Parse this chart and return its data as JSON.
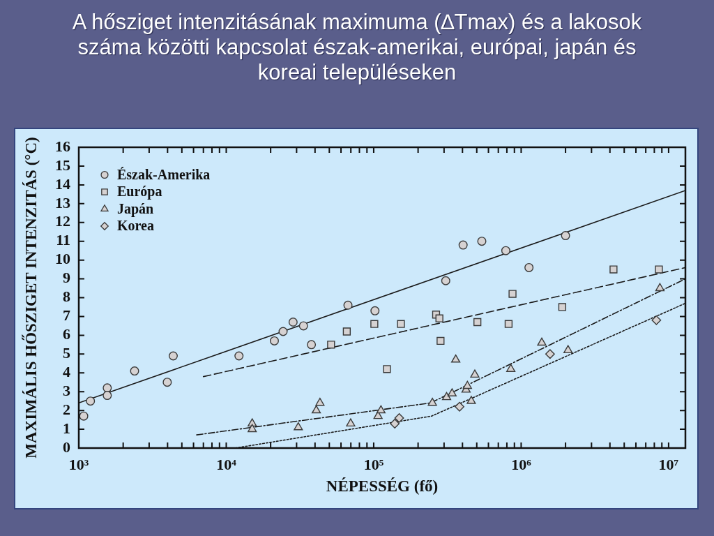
{
  "chart_data": {
    "type": "scatter",
    "title": "A hősziget intenzitásának maximuma (∆Tmax) és a lakosok száma közötti kapcsolat észak-amerikai, európai, japán és koreai településeken",
    "xlabel": "NÉPESSÉG (fő)",
    "ylabel": "MAXIMÁLIS HŐSZIGET INTENZITÁS (°C)",
    "log": "x",
    "legend": "top left",
    "xlim": [
      1000,
      13000000
    ],
    "xticks": [
      {
        "value": 1000,
        "label": "10³"
      },
      {
        "value": 2000,
        "label": null
      },
      {
        "value": 3000,
        "label": null
      },
      {
        "value": 4000,
        "label": null
      },
      {
        "value": 5000,
        "label": null
      },
      {
        "value": 6000,
        "label": null
      },
      {
        "value": 7000,
        "label": null
      },
      {
        "value": 8000,
        "label": null
      },
      {
        "value": 9000,
        "label": null
      },
      {
        "value": 10000,
        "label": "10⁴"
      },
      {
        "value": 20000,
        "label": null
      },
      {
        "value": 30000,
        "label": null
      },
      {
        "value": 40000,
        "label": null
      },
      {
        "value": 50000,
        "label": null
      },
      {
        "value": 60000,
        "label": null
      },
      {
        "value": 70000,
        "label": null
      },
      {
        "value": 80000,
        "label": null
      },
      {
        "value": 90000,
        "label": null
      },
      {
        "value": 100000,
        "label": "10⁵"
      },
      {
        "value": 200000,
        "label": null
      },
      {
        "value": 300000,
        "label": null
      },
      {
        "value": 400000,
        "label": null
      },
      {
        "value": 500000,
        "label": null
      },
      {
        "value": 600000,
        "label": null
      },
      {
        "value": 700000,
        "label": null
      },
      {
        "value": 800000,
        "label": null
      },
      {
        "value": 900000,
        "label": null
      },
      {
        "value": 1000000,
        "label": "10⁶"
      },
      {
        "value": 2000000,
        "label": null
      },
      {
        "value": 3000000,
        "label": null
      },
      {
        "value": 4000000,
        "label": null
      },
      {
        "value": 5000000,
        "label": null
      },
      {
        "value": 6000000,
        "label": null
      },
      {
        "value": 7000000,
        "label": null
      },
      {
        "value": 8000000,
        "label": null
      },
      {
        "value": 9000000,
        "label": null
      },
      {
        "value": 10000000,
        "label": "10⁷"
      }
    ],
    "ylim": [
      0,
      16
    ],
    "yticks": [
      0,
      1,
      2,
      3,
      4,
      5,
      6,
      7,
      8,
      9,
      10,
      11,
      12,
      13,
      14,
      15,
      16
    ],
    "series": [
      {
        "name": "Észak-Amerika",
        "color": "#d6d2d2",
        "marker": "circle",
        "x": [
          1080,
          1200,
          1560,
          1560,
          2390,
          3980,
          4370,
          12200,
          21200,
          24300,
          28400,
          33400,
          37800,
          66900,
          102000,
          308000,
          404000,
          541000,
          787000,
          1130000,
          2000000
        ],
        "values": [
          1.7,
          2.5,
          3.2,
          2.8,
          4.1,
          3.5,
          4.9,
          4.9,
          5.7,
          6.2,
          6.7,
          6.5,
          5.5,
          7.6,
          7.3,
          8.9,
          10.8,
          11.0,
          10.5,
          9.6,
          11.3
        ]
      },
      {
        "name": "Európa",
        "color": "#d6d2d2",
        "marker": "square",
        "x": [
          51400,
          65700,
          101000,
          153000,
          123000,
          265000,
          279000,
          284000,
          505000,
          822000,
          874000,
          1900000,
          4230000,
          8590000
        ],
        "values": [
          5.5,
          6.2,
          6.6,
          6.6,
          4.2,
          7.1,
          6.9,
          5.7,
          6.7,
          6.6,
          8.2,
          7.5,
          9.5,
          9.5
        ]
      },
      {
        "name": "Japán",
        "color": "#d6d2d2",
        "marker": "triangle",
        "x": [
          15000,
          15000,
          30800,
          40800,
          43200,
          69800,
          107000,
          112000,
          250000,
          312000,
          340000,
          360000,
          423000,
          432000,
          459000,
          485000,
          851000,
          1380000,
          2080000,
          8730000
        ],
        "values": [
          1.3,
          1.0,
          1.1,
          2.0,
          2.4,
          1.3,
          1.7,
          2.0,
          2.4,
          2.7,
          2.9,
          4.7,
          3.1,
          3.3,
          2.5,
          3.9,
          4.2,
          5.6,
          5.2,
          8.5
        ]
      },
      {
        "name": "Korea",
        "color": "#d6d2d2",
        "marker": "diamond",
        "x": [
          139000,
          149000,
          382000,
          1570000,
          8260000
        ],
        "values": [
          1.3,
          1.6,
          2.2,
          5.0,
          6.8
        ]
      },
      {
        "type": "line",
        "color": "#1a1a1a",
        "line_style": "solid",
        "x": [
          1000,
          13000000
        ],
        "values": [
          2.4,
          13.7
        ]
      },
      {
        "type": "line",
        "color": "#1a1a1a",
        "line_style": "dashed",
        "x": [
          7000,
          13000000
        ],
        "values": [
          3.8,
          9.6
        ]
      },
      {
        "type": "line",
        "color": "#1a1a1a",
        "line_style": "dashdot",
        "x": [
          6300,
          243000,
          13000000
        ],
        "values": [
          0.7,
          2.4,
          9.0
        ]
      },
      {
        "type": "line",
        "color": "#1a1a1a",
        "line_style": "dotted",
        "x": [
          11500,
          247000,
          13000000
        ],
        "values": [
          0,
          1.7,
          7.7
        ]
      }
    ]
  }
}
